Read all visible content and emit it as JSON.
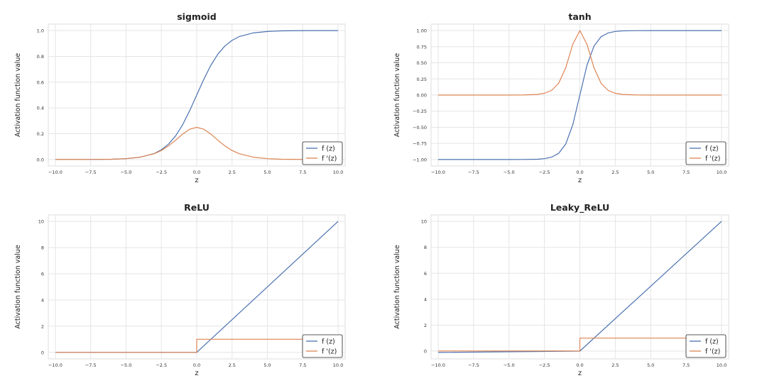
{
  "chart_data": [
    {
      "type": "line",
      "title": "sigmoid",
      "xlabel": "z",
      "ylabel": "Activation function value",
      "xlim": [
        -10.5,
        10.5
      ],
      "ylim": [
        -0.05,
        1.05
      ],
      "xticks": [
        -10,
        -7.5,
        -5,
        -2.5,
        0,
        2.5,
        5,
        7.5,
        10
      ],
      "xtick_labels": [
        "−10.0",
        "−7.5",
        "−5.0",
        "−2.5",
        "0.0",
        "2.5",
        "5.0",
        "7.5",
        "10.0"
      ],
      "yticks": [
        0,
        0.2,
        0.4,
        0.6,
        0.8,
        1.0
      ],
      "ytick_labels": [
        "0.0",
        "0.2",
        "0.4",
        "0.6",
        "0.8",
        "1.0"
      ],
      "grid": true,
      "legend_position": "lower-right",
      "x": [
        -10,
        -8,
        -6,
        -5,
        -4,
        -3,
        -2.5,
        -2,
        -1.5,
        -1,
        -0.5,
        0,
        0.5,
        1,
        1.5,
        2,
        2.5,
        3,
        4,
        5,
        6,
        8,
        10
      ],
      "series": [
        {
          "name": "f (z)",
          "color": "#4c72b0",
          "values": [
            0.0,
            0.0003,
            0.0025,
            0.0067,
            0.018,
            0.047,
            0.076,
            0.119,
            0.182,
            0.269,
            0.378,
            0.5,
            0.622,
            0.731,
            0.818,
            0.881,
            0.924,
            0.953,
            0.982,
            0.993,
            0.998,
            0.9997,
            1.0
          ]
        },
        {
          "name": "f '(z)",
          "color": "#dd8452",
          "values": [
            0.0,
            0.0003,
            0.0025,
            0.0066,
            0.018,
            0.045,
            0.07,
            0.105,
            0.149,
            0.197,
            0.235,
            0.25,
            0.235,
            0.197,
            0.149,
            0.105,
            0.07,
            0.045,
            0.018,
            0.0066,
            0.0025,
            0.0003,
            0.0
          ]
        }
      ]
    },
    {
      "type": "line",
      "title": "tanh",
      "xlabel": "z",
      "ylabel": "Activation function value",
      "xlim": [
        -10.5,
        10.5
      ],
      "ylim": [
        -1.1,
        1.1
      ],
      "xticks": [
        -10,
        -7.5,
        -5,
        -2.5,
        0,
        2.5,
        5,
        7.5,
        10
      ],
      "xtick_labels": [
        "−10.0",
        "−7.5",
        "−5.0",
        "−2.5",
        "0.0",
        "2.5",
        "5.0",
        "7.5",
        "10.0"
      ],
      "yticks": [
        -1.0,
        -0.75,
        -0.5,
        -0.25,
        0,
        0.25,
        0.5,
        0.75,
        1.0
      ],
      "ytick_labels": [
        "−1.00",
        "−0.75",
        "−0.50",
        "−0.25",
        "0.00",
        "0.25",
        "0.50",
        "0.75",
        "1.00"
      ],
      "grid": true,
      "legend_position": "lower-right",
      "x": [
        -10,
        -5,
        -4,
        -3,
        -2.5,
        -2,
        -1.5,
        -1,
        -0.5,
        0,
        0.5,
        1,
        1.5,
        2,
        2.5,
        3,
        4,
        5,
        10
      ],
      "series": [
        {
          "name": "f (z)",
          "color": "#4c72b0",
          "values": [
            -1.0,
            -0.9999,
            -0.9993,
            -0.995,
            -0.987,
            -0.964,
            -0.905,
            -0.762,
            -0.462,
            0.0,
            0.462,
            0.762,
            0.905,
            0.964,
            0.987,
            0.995,
            0.9993,
            0.9999,
            1.0
          ]
        },
        {
          "name": "f '(z)",
          "color": "#dd8452",
          "values": [
            0.0,
            0.0002,
            0.0013,
            0.01,
            0.027,
            0.071,
            0.181,
            0.42,
            0.786,
            1.0,
            0.786,
            0.42,
            0.181,
            0.071,
            0.027,
            0.01,
            0.0013,
            0.0002,
            0.0
          ]
        }
      ]
    },
    {
      "type": "line",
      "title": "ReLU",
      "xlabel": "z",
      "ylabel": "Activation function value",
      "xlim": [
        -10.5,
        10.5
      ],
      "ylim": [
        -0.5,
        10.5
      ],
      "xticks": [
        -10,
        -7.5,
        -5,
        -2.5,
        0,
        2.5,
        5,
        7.5,
        10
      ],
      "xtick_labels": [
        "−10.0",
        "−7.5",
        "−5.0",
        "−2.5",
        "0.0",
        "2.5",
        "5.0",
        "7.5",
        "10.0"
      ],
      "yticks": [
        0,
        2,
        4,
        6,
        8,
        10
      ],
      "ytick_labels": [
        "0",
        "2",
        "4",
        "6",
        "8",
        "10"
      ],
      "grid": true,
      "legend_position": "lower-right",
      "series": [
        {
          "name": "f (z)",
          "color": "#4c72b0",
          "x": [
            -10,
            0,
            10
          ],
          "values": [
            0,
            0,
            10
          ]
        },
        {
          "name": "f '(z)",
          "color": "#dd8452",
          "x": [
            -10,
            0,
            0,
            10
          ],
          "values": [
            0,
            0,
            1,
            1
          ]
        }
      ]
    },
    {
      "type": "line",
      "title": "Leaky_ReLU",
      "xlabel": "z",
      "ylabel": "Activation function value",
      "xlim": [
        -10.5,
        10.5
      ],
      "ylim": [
        -0.6,
        10.5
      ],
      "xticks": [
        -10,
        -7.5,
        -5,
        -2.5,
        0,
        2.5,
        5,
        7.5,
        10
      ],
      "xtick_labels": [
        "−10.0",
        "−7.5",
        "−5.0",
        "−2.5",
        "0.0",
        "2.5",
        "5.0",
        "7.5",
        "10.0"
      ],
      "yticks": [
        0,
        2,
        4,
        6,
        8,
        10
      ],
      "ytick_labels": [
        "0",
        "2",
        "4",
        "6",
        "8",
        "10"
      ],
      "grid": true,
      "legend_position": "lower-right",
      "series": [
        {
          "name": "f (z)",
          "color": "#4c72b0",
          "x": [
            -10,
            0,
            10
          ],
          "values": [
            -0.1,
            0,
            10
          ]
        },
        {
          "name": "f '(z)",
          "color": "#dd8452",
          "x": [
            -10,
            0,
            0,
            10
          ],
          "values": [
            0.01,
            0.01,
            1,
            1
          ]
        }
      ]
    }
  ]
}
